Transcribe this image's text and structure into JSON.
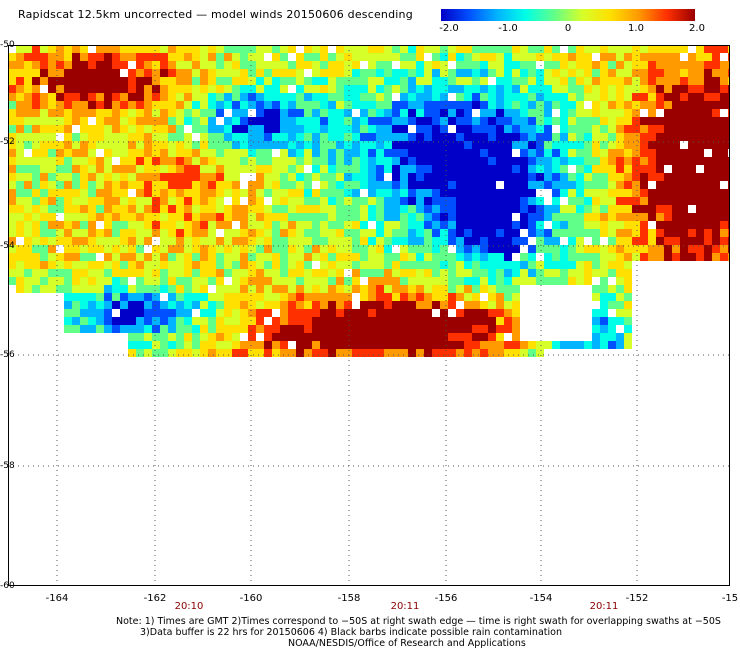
{
  "title": "Rapidscat 12.5km uncorrected — model winds 20150606 descending",
  "colorbar": {
    "labels": [
      "-2.0",
      "-1.0",
      "0",
      "1.0",
      "2.0"
    ],
    "range": [
      -2.0,
      2.0
    ],
    "colors": [
      "#0000c8",
      "#0050ff",
      "#00b4ff",
      "#00ffe6",
      "#60ff8a",
      "#d6ff2a",
      "#ffe000",
      "#ff9a00",
      "#ff3000",
      "#9a0000"
    ]
  },
  "map": {
    "lat_labels": [
      "-50",
      "-52",
      "-54",
      "-56",
      "-58",
      "-60"
    ],
    "lon_labels": [
      "-164",
      "-162",
      "-160",
      "-158",
      "-156",
      "-154",
      "-152",
      "-15"
    ],
    "time_labels": [
      "20:10",
      "20:11",
      "20:11"
    ],
    "grid": "dotted",
    "data_extent": {
      "lat_top": -50,
      "lat_bottom": -56,
      "lon_left": -165,
      "lon_right": -150
    }
  },
  "notes": [
    "Note: 1) Times are GMT 2)Times correspond to −50S at right swath edge — time is right swath for overlapping swaths at −50S",
    "3)Data buffer is 22 hrs for 20150606 4) Black barbs indicate possible rain contamination",
    "NOAA/NESDIS/Office of Research and Applications"
  ]
}
